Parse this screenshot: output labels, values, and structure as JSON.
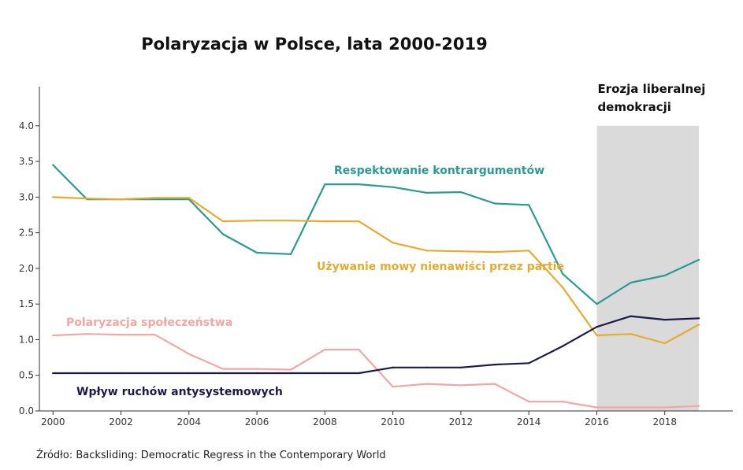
{
  "chart_data": {
    "type": "line",
    "title": "Polaryzacja w Polsce, lata 2000-2019",
    "xlabel": "",
    "ylabel": "",
    "xlim": [
      1999.6,
      2020.0
    ],
    "ylim": [
      0,
      4.55
    ],
    "x_ticks": [
      2000,
      2002,
      2004,
      2006,
      2008,
      2010,
      2012,
      2014,
      2016,
      2018
    ],
    "y_ticks": [
      0.0,
      0.5,
      1.0,
      1.5,
      2.0,
      2.5,
      3.0,
      3.5,
      4.0
    ],
    "x_tick_labels": [
      "2000",
      "2002",
      "2004",
      "2006",
      "2008",
      "2010",
      "2012",
      "2014",
      "2016",
      "2018"
    ],
    "y_tick_labels": [
      "0.0",
      "0.5",
      "1.0",
      "1.5",
      "2.0",
      "2.5",
      "3.0",
      "3.5",
      "4.0"
    ],
    "grid": false,
    "legend": "none (direct labels)",
    "x": [
      2000,
      2001,
      2002,
      2003,
      2004,
      2005,
      2006,
      2007,
      2008,
      2009,
      2010,
      2011,
      2012,
      2013,
      2014,
      2015,
      2016,
      2017,
      2018,
      2019
    ],
    "series": [
      {
        "name": "Respektowanie kontrargumentów",
        "color": "#2a9a94",
        "values": [
          3.45,
          2.97,
          2.97,
          2.97,
          2.97,
          2.48,
          2.22,
          2.2,
          3.18,
          3.18,
          3.14,
          3.06,
          3.07,
          2.91,
          2.89,
          1.92,
          1.5,
          1.8,
          1.9,
          2.12
        ]
      },
      {
        "name": "Używanie mowy nienawiści przez partie",
        "color": "#e8aa2e",
        "values": [
          3.0,
          2.98,
          2.97,
          2.99,
          2.99,
          2.66,
          2.67,
          2.67,
          2.66,
          2.66,
          2.36,
          2.25,
          2.24,
          2.23,
          2.25,
          1.73,
          1.06,
          1.08,
          0.95,
          1.21
        ]
      },
      {
        "name": "Polaryzacja społeczeństwa",
        "color": "#f2a7a3",
        "values": [
          1.06,
          1.08,
          1.07,
          1.07,
          0.8,
          0.59,
          0.59,
          0.58,
          0.86,
          0.86,
          0.34,
          0.38,
          0.36,
          0.38,
          0.13,
          0.13,
          0.05,
          0.05,
          0.05,
          0.07
        ]
      },
      {
        "name": "Wpływ ruchów antysystemowych",
        "color": "#1b1a4a",
        "values": [
          0.53,
          0.53,
          0.53,
          0.53,
          0.53,
          0.53,
          0.53,
          0.53,
          0.53,
          0.53,
          0.61,
          0.61,
          0.61,
          0.65,
          0.67,
          0.91,
          1.18,
          1.33,
          1.28,
          1.3
        ]
      }
    ],
    "shaded_region": {
      "x_from": 2016,
      "x_to": 2019,
      "y_top": 4.0,
      "color": "#dadada",
      "label_lines": [
        "Erozja liberalnej",
        "demokracji"
      ]
    },
    "source": "Źródło: Backsliding: Democratic Regress in the Contemporary World"
  }
}
